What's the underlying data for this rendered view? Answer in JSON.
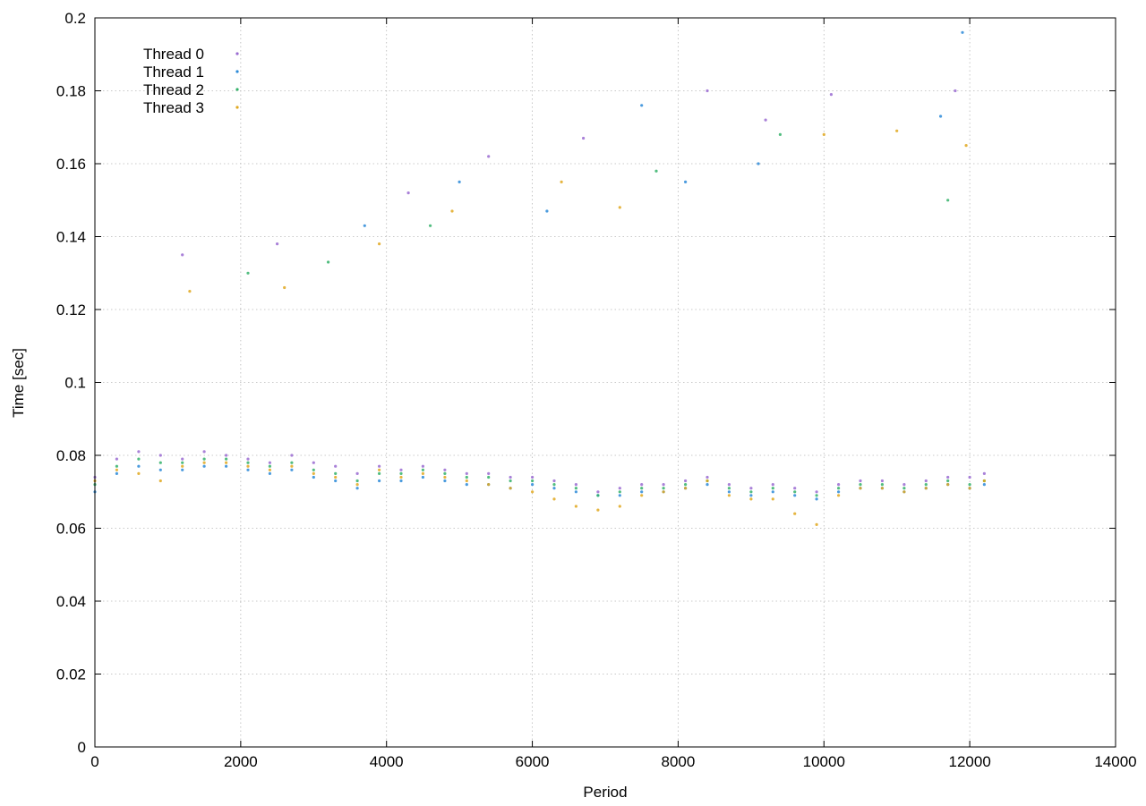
{
  "chart_data": {
    "type": "scatter",
    "xlabel": "Period",
    "ylabel": "Time [sec]",
    "xlim": [
      0,
      14000
    ],
    "ylim": [
      0,
      0.2
    ],
    "x_ticks": [
      "0",
      "2000",
      "4000",
      "6000",
      "8000",
      "10000",
      "12000",
      "14000"
    ],
    "y_ticks": [
      "0",
      "0.02",
      "0.04",
      "0.06",
      "0.08",
      "0.1",
      "0.12",
      "0.14",
      "0.16",
      "0.18",
      "0.2"
    ],
    "grid": true,
    "legend": {
      "placement": "top-left",
      "entries": [
        "Thread 0",
        "Thread 1",
        "Thread 2",
        "Thread 3"
      ]
    },
    "series": [
      {
        "name": "Thread 0",
        "color": "#9a6bd1",
        "points": [
          [
            0,
            0.074
          ],
          [
            300,
            0.079
          ],
          [
            600,
            0.081
          ],
          [
            900,
            0.08
          ],
          [
            1200,
            0.079
          ],
          [
            1500,
            0.081
          ],
          [
            1800,
            0.08
          ],
          [
            2100,
            0.079
          ],
          [
            2400,
            0.078
          ],
          [
            2700,
            0.08
          ],
          [
            3000,
            0.078
          ],
          [
            3300,
            0.077
          ],
          [
            3600,
            0.075
          ],
          [
            3900,
            0.077
          ],
          [
            4200,
            0.076
          ],
          [
            4500,
            0.077
          ],
          [
            4800,
            0.076
          ],
          [
            5100,
            0.075
          ],
          [
            5400,
            0.075
          ],
          [
            5700,
            0.074
          ],
          [
            6000,
            0.074
          ],
          [
            6300,
            0.073
          ],
          [
            6600,
            0.072
          ],
          [
            6900,
            0.07
          ],
          [
            7200,
            0.071
          ],
          [
            7500,
            0.072
          ],
          [
            7800,
            0.072
          ],
          [
            8100,
            0.073
          ],
          [
            8400,
            0.074
          ],
          [
            8700,
            0.072
          ],
          [
            9000,
            0.071
          ],
          [
            9300,
            0.072
          ],
          [
            9600,
            0.071
          ],
          [
            9900,
            0.07
          ],
          [
            10200,
            0.072
          ],
          [
            10500,
            0.073
          ],
          [
            10800,
            0.073
          ],
          [
            11100,
            0.072
          ],
          [
            11400,
            0.073
          ],
          [
            11700,
            0.074
          ],
          [
            12000,
            0.074
          ],
          [
            12200,
            0.075
          ],
          [
            1200,
            0.135
          ],
          [
            2500,
            0.138
          ],
          [
            4300,
            0.152
          ],
          [
            5400,
            0.162
          ],
          [
            6700,
            0.167
          ],
          [
            8400,
            0.18
          ],
          [
            9200,
            0.172
          ],
          [
            10100,
            0.179
          ],
          [
            11800,
            0.18
          ]
        ]
      },
      {
        "name": "Thread 1",
        "color": "#2b8ad8",
        "points": [
          [
            0,
            0.07
          ],
          [
            300,
            0.075
          ],
          [
            600,
            0.077
          ],
          [
            900,
            0.076
          ],
          [
            1200,
            0.076
          ],
          [
            1500,
            0.077
          ],
          [
            1800,
            0.077
          ],
          [
            2100,
            0.076
          ],
          [
            2400,
            0.075
          ],
          [
            2700,
            0.076
          ],
          [
            3000,
            0.074
          ],
          [
            3300,
            0.073
          ],
          [
            3600,
            0.071
          ],
          [
            3900,
            0.073
          ],
          [
            4200,
            0.073
          ],
          [
            4500,
            0.074
          ],
          [
            4800,
            0.073
          ],
          [
            5100,
            0.072
          ],
          [
            5400,
            0.072
          ],
          [
            5700,
            0.071
          ],
          [
            6000,
            0.072
          ],
          [
            6300,
            0.071
          ],
          [
            6600,
            0.07
          ],
          [
            6900,
            0.069
          ],
          [
            7200,
            0.069
          ],
          [
            7500,
            0.07
          ],
          [
            7800,
            0.07
          ],
          [
            8100,
            0.071
          ],
          [
            8400,
            0.072
          ],
          [
            8700,
            0.07
          ],
          [
            9000,
            0.069
          ],
          [
            9300,
            0.07
          ],
          [
            9600,
            0.069
          ],
          [
            9900,
            0.068
          ],
          [
            10200,
            0.07
          ],
          [
            10500,
            0.071
          ],
          [
            10800,
            0.071
          ],
          [
            11100,
            0.07
          ],
          [
            11400,
            0.071
          ],
          [
            11700,
            0.072
          ],
          [
            12000,
            0.071
          ],
          [
            12200,
            0.072
          ],
          [
            3700,
            0.143
          ],
          [
            5000,
            0.155
          ],
          [
            6200,
            0.147
          ],
          [
            7500,
            0.176
          ],
          [
            8100,
            0.155
          ],
          [
            9100,
            0.16
          ],
          [
            11600,
            0.173
          ],
          [
            11900,
            0.196
          ]
        ]
      },
      {
        "name": "Thread 2",
        "color": "#34b26a",
        "points": [
          [
            0,
            0.072
          ],
          [
            300,
            0.077
          ],
          [
            600,
            0.079
          ],
          [
            900,
            0.078
          ],
          [
            1200,
            0.078
          ],
          [
            1500,
            0.079
          ],
          [
            1800,
            0.079
          ],
          [
            2100,
            0.078
          ],
          [
            2400,
            0.077
          ],
          [
            2700,
            0.078
          ],
          [
            3000,
            0.076
          ],
          [
            3300,
            0.075
          ],
          [
            3600,
            0.073
          ],
          [
            3900,
            0.075
          ],
          [
            4200,
            0.075
          ],
          [
            4500,
            0.076
          ],
          [
            4800,
            0.075
          ],
          [
            5100,
            0.074
          ],
          [
            5400,
            0.074
          ],
          [
            5700,
            0.073
          ],
          [
            6000,
            0.073
          ],
          [
            6300,
            0.072
          ],
          [
            6600,
            0.071
          ],
          [
            6900,
            0.069
          ],
          [
            7200,
            0.07
          ],
          [
            7500,
            0.071
          ],
          [
            7800,
            0.071
          ],
          [
            8100,
            0.072
          ],
          [
            8400,
            0.073
          ],
          [
            8700,
            0.071
          ],
          [
            9000,
            0.07
          ],
          [
            9300,
            0.071
          ],
          [
            9600,
            0.07
          ],
          [
            9900,
            0.069
          ],
          [
            10200,
            0.071
          ],
          [
            10500,
            0.072
          ],
          [
            10800,
            0.072
          ],
          [
            11100,
            0.071
          ],
          [
            11400,
            0.072
          ],
          [
            11700,
            0.073
          ],
          [
            12000,
            0.072
          ],
          [
            12200,
            0.073
          ],
          [
            2100,
            0.13
          ],
          [
            3200,
            0.133
          ],
          [
            4600,
            0.143
          ],
          [
            7700,
            0.158
          ],
          [
            9400,
            0.168
          ],
          [
            11700,
            0.15
          ]
        ]
      },
      {
        "name": "Thread 3",
        "color": "#e0a820",
        "points": [
          [
            0,
            0.073
          ],
          [
            300,
            0.076
          ],
          [
            600,
            0.075
          ],
          [
            900,
            0.073
          ],
          [
            1200,
            0.077
          ],
          [
            1500,
            0.078
          ],
          [
            1800,
            0.078
          ],
          [
            2100,
            0.077
          ],
          [
            2400,
            0.076
          ],
          [
            2700,
            0.077
          ],
          [
            3000,
            0.075
          ],
          [
            3300,
            0.074
          ],
          [
            3600,
            0.072
          ],
          [
            3900,
            0.076
          ],
          [
            4200,
            0.074
          ],
          [
            4500,
            0.075
          ],
          [
            4800,
            0.074
          ],
          [
            5100,
            0.073
          ],
          [
            5400,
            0.072
          ],
          [
            5700,
            0.071
          ],
          [
            6000,
            0.07
          ],
          [
            6300,
            0.068
          ],
          [
            6600,
            0.066
          ],
          [
            6900,
            0.065
          ],
          [
            7200,
            0.066
          ],
          [
            7500,
            0.069
          ],
          [
            7800,
            0.07
          ],
          [
            8100,
            0.071
          ],
          [
            8400,
            0.073
          ],
          [
            8700,
            0.069
          ],
          [
            9000,
            0.068
          ],
          [
            9300,
            0.068
          ],
          [
            9600,
            0.064
          ],
          [
            9900,
            0.061
          ],
          [
            10200,
            0.069
          ],
          [
            10500,
            0.071
          ],
          [
            10800,
            0.071
          ],
          [
            11100,
            0.07
          ],
          [
            11400,
            0.071
          ],
          [
            11700,
            0.072
          ],
          [
            12000,
            0.071
          ],
          [
            12200,
            0.073
          ],
          [
            1300,
            0.125
          ],
          [
            2600,
            0.126
          ],
          [
            3900,
            0.138
          ],
          [
            4900,
            0.147
          ],
          [
            6400,
            0.155
          ],
          [
            7200,
            0.148
          ],
          [
            10000,
            0.168
          ],
          [
            11000,
            0.169
          ],
          [
            11950,
            0.165
          ]
        ]
      }
    ]
  }
}
